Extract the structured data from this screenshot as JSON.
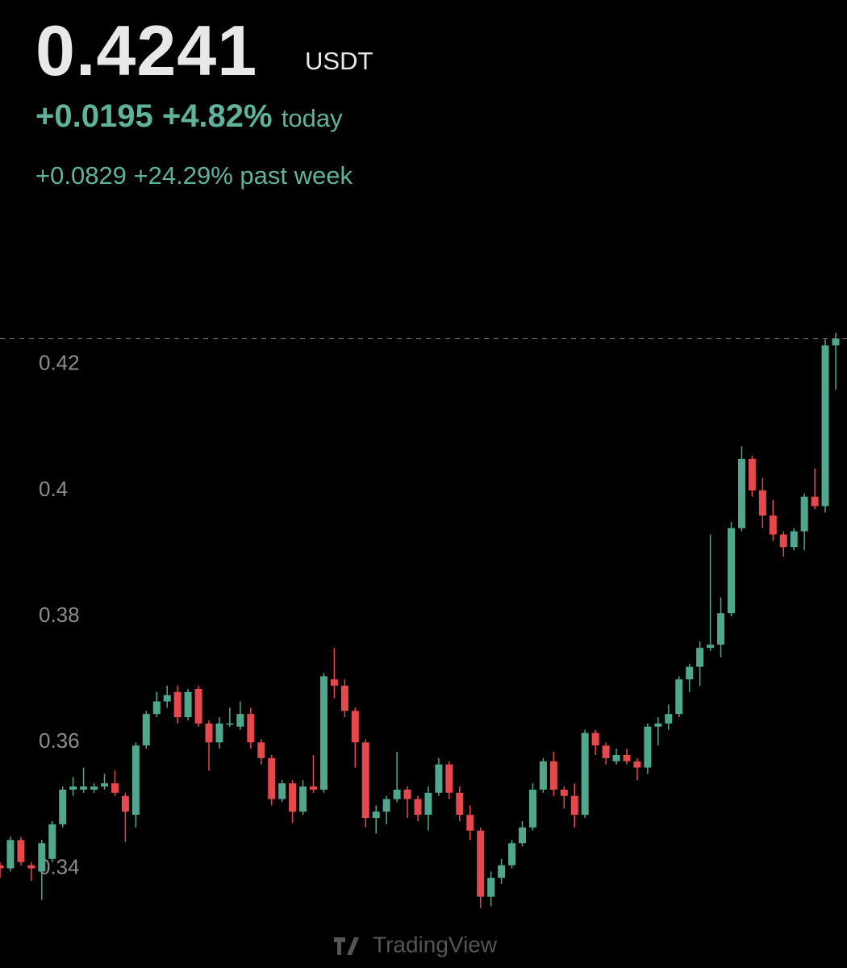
{
  "header": {
    "price": "0.4241",
    "unit": "USDT",
    "today_change": "+0.0195",
    "today_percent": "+4.82%",
    "today_label": "today",
    "week_text": "+0.0829 +24.29% past week"
  },
  "watermark": "TradingView",
  "chart_data": {
    "type": "candlestick",
    "up_color": "#4fa88e",
    "down_color": "#e5484d",
    "ylim": [
      0.332,
      0.427
    ],
    "yticks": [
      0.34,
      0.36,
      0.38,
      0.4,
      0.42
    ],
    "open": [
      0.3405,
      0.34,
      0.3445,
      0.3405,
      0.3395,
      0.3415,
      0.347,
      0.3525,
      0.3525,
      0.3525,
      0.353,
      0.3535,
      0.3515,
      0.3485,
      0.3595,
      0.3645,
      0.3665,
      0.368,
      0.364,
      0.3685,
      0.363,
      0.36,
      0.363,
      0.3625,
      0.3645,
      0.36,
      0.3575,
      0.351,
      0.3535,
      0.349,
      0.353,
      0.3525,
      0.37,
      0.369,
      0.365,
      0.36,
      0.348,
      0.349,
      0.351,
      0.3525,
      0.351,
      0.3485,
      0.352,
      0.3565,
      0.352,
      0.3485,
      0.346,
      0.3355,
      0.3385,
      0.3405,
      0.344,
      0.3465,
      0.3525,
      0.357,
      0.3525,
      0.3515,
      0.3485,
      0.3615,
      0.3595,
      0.357,
      0.358,
      0.357,
      0.356,
      0.3625,
      0.363,
      0.3645,
      0.37,
      0.372,
      0.375,
      0.3755,
      0.3805,
      0.394,
      0.405,
      0.4,
      0.396,
      0.393,
      0.391,
      0.3935,
      0.399,
      0.3975,
      0.423
    ],
    "high": [
      0.341,
      0.345,
      0.345,
      0.341,
      0.3445,
      0.3475,
      0.353,
      0.3545,
      0.356,
      0.3535,
      0.355,
      0.3555,
      0.352,
      0.36,
      0.365,
      0.368,
      0.369,
      0.369,
      0.3685,
      0.369,
      0.3635,
      0.364,
      0.3655,
      0.3665,
      0.3655,
      0.3605,
      0.358,
      0.354,
      0.354,
      0.354,
      0.358,
      0.371,
      0.375,
      0.37,
      0.3655,
      0.3605,
      0.35,
      0.3515,
      0.3585,
      0.353,
      0.3515,
      0.353,
      0.3575,
      0.357,
      0.353,
      0.35,
      0.3465,
      0.3395,
      0.3415,
      0.3445,
      0.3475,
      0.3535,
      0.3575,
      0.3585,
      0.353,
      0.3535,
      0.362,
      0.362,
      0.36,
      0.359,
      0.359,
      0.3575,
      0.363,
      0.364,
      0.366,
      0.3705,
      0.3725,
      0.376,
      0.393,
      0.383,
      0.395,
      0.407,
      0.4055,
      0.402,
      0.3985,
      0.3935,
      0.394,
      0.3995,
      0.4035,
      0.424,
      0.425
    ],
    "low": [
      0.3385,
      0.3395,
      0.3405,
      0.338,
      0.335,
      0.341,
      0.3465,
      0.3515,
      0.352,
      0.352,
      0.3525,
      0.3515,
      0.3442,
      0.3465,
      0.359,
      0.364,
      0.3655,
      0.363,
      0.3635,
      0.3625,
      0.3555,
      0.359,
      0.3625,
      0.362,
      0.359,
      0.3565,
      0.35,
      0.3505,
      0.3472,
      0.3485,
      0.352,
      0.352,
      0.367,
      0.364,
      0.356,
      0.3465,
      0.3455,
      0.347,
      0.3505,
      0.348,
      0.3475,
      0.346,
      0.3515,
      0.351,
      0.3475,
      0.3445,
      0.3337,
      0.334,
      0.3375,
      0.34,
      0.3435,
      0.346,
      0.352,
      0.3515,
      0.3495,
      0.3465,
      0.348,
      0.358,
      0.3565,
      0.3565,
      0.3565,
      0.354,
      0.355,
      0.3595,
      0.362,
      0.364,
      0.368,
      0.369,
      0.3745,
      0.3735,
      0.38,
      0.3935,
      0.399,
      0.394,
      0.392,
      0.3895,
      0.3905,
      0.3905,
      0.397,
      0.3965,
      0.416
    ],
    "close": [
      0.34,
      0.3445,
      0.341,
      0.34,
      0.344,
      0.347,
      0.3525,
      0.353,
      0.353,
      0.353,
      0.3535,
      0.352,
      0.349,
      0.3595,
      0.3645,
      0.3665,
      0.3675,
      0.364,
      0.368,
      0.363,
      0.36,
      0.363,
      0.363,
      0.3645,
      0.36,
      0.3575,
      0.351,
      0.3535,
      0.349,
      0.353,
      0.3525,
      0.3705,
      0.369,
      0.365,
      0.36,
      0.348,
      0.349,
      0.351,
      0.3525,
      0.351,
      0.3485,
      0.352,
      0.3565,
      0.352,
      0.3485,
      0.346,
      0.3355,
      0.3385,
      0.3405,
      0.344,
      0.3465,
      0.3525,
      0.357,
      0.3525,
      0.3515,
      0.3485,
      0.3615,
      0.3595,
      0.3575,
      0.358,
      0.357,
      0.356,
      0.3625,
      0.363,
      0.3645,
      0.37,
      0.372,
      0.375,
      0.3755,
      0.3805,
      0.394,
      0.405,
      0.4,
      0.396,
      0.393,
      0.391,
      0.3935,
      0.399,
      0.3975,
      0.423,
      0.4241
    ]
  }
}
